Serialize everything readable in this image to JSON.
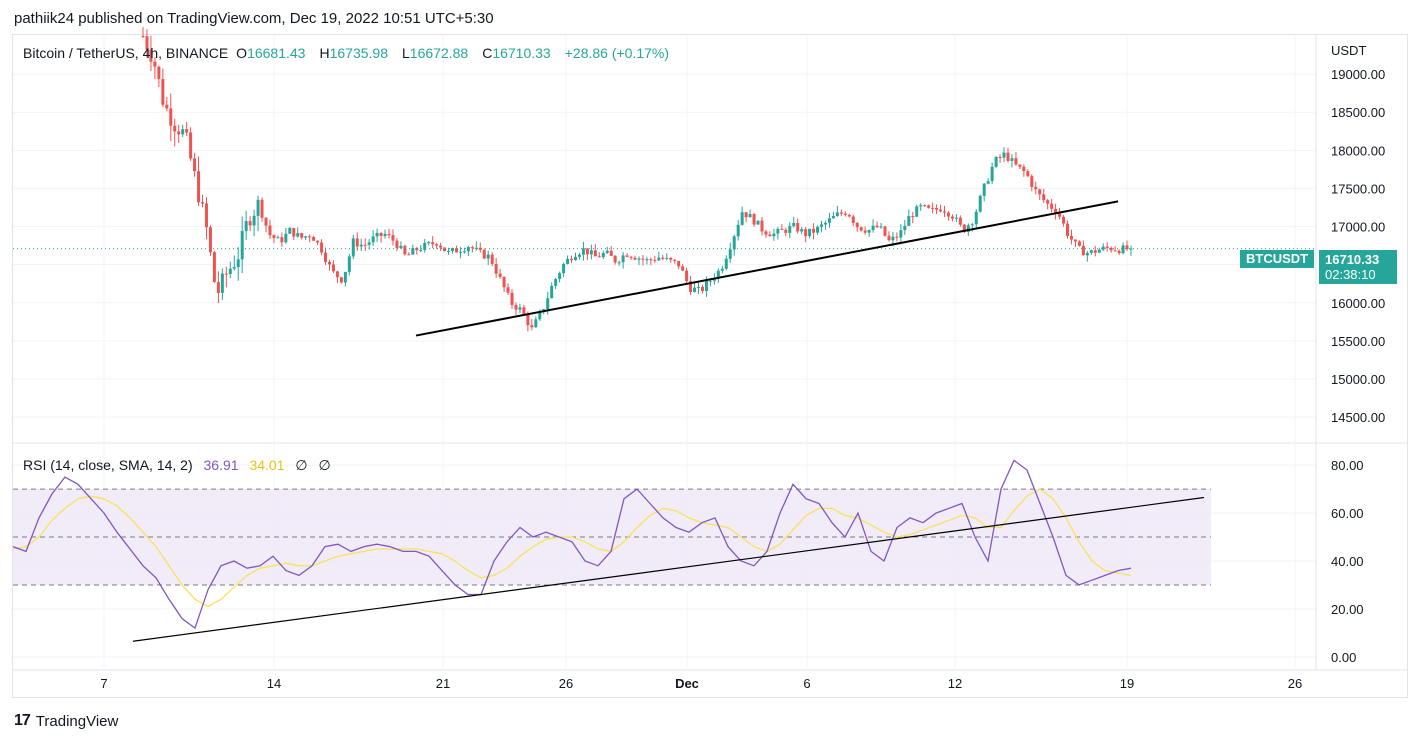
{
  "header": {
    "publish_text": "pathiik24 published on TradingView.com, Dec 19, 2022 10:51 UTC+5:30"
  },
  "legend": {
    "symbol": "Bitcoin / TetherUS, 4h, BINANCE",
    "o_label": "O",
    "o_value": "16681.43",
    "h_label": "H",
    "h_value": "16735.98",
    "l_label": "L",
    "l_value": "16672.88",
    "c_label": "C",
    "c_value": "16710.33",
    "change": "+28.86 (+0.17%)"
  },
  "rsi_legend": {
    "name": "RSI (14, close, SMA, 14, 2)",
    "rsi_value": "36.91",
    "sma_value": "34.01",
    "empty1": "∅",
    "empty2": "∅"
  },
  "price_tags": {
    "ticker": "BTCUSDT",
    "last_price": "16710.33",
    "countdown": "02:38:10"
  },
  "footer": {
    "brand": "TradingView",
    "logo": "17"
  },
  "colors": {
    "up": "#26a69a",
    "down": "#ef5350",
    "rsi": "#7e57c2",
    "sma": "#f7e25c",
    "band": "#ede7f6",
    "grid": "#f0f3fa",
    "trend": "#000000"
  },
  "chart_data": [
    {
      "type": "candlestick",
      "title": "Bitcoin / TetherUS, 4h, BINANCE",
      "currency": "USDT",
      "x_ticks": [
        "7",
        "14",
        "21",
        "26",
        "Dec",
        "6",
        "12",
        "19",
        "26"
      ],
      "y_ticks": [
        "19000.00",
        "18500.00",
        "18000.00",
        "17500.00",
        "17000.00",
        "16500.00",
        "16000.00",
        "15500.00",
        "15000.00",
        "14500.00"
      ],
      "ylim": [
        14200,
        19500
      ],
      "last_price": 16710.33,
      "trendline": {
        "from_price": 15570,
        "to_price": 17330
      },
      "close_path": [
        19500,
        19200,
        18600,
        18350,
        18200,
        17600,
        17000,
        16100,
        16400,
        16600,
        17100,
        17300,
        16900,
        16800,
        16950,
        16850,
        16900,
        16700,
        16400,
        16300,
        16800,
        16750,
        16850,
        16900,
        16800,
        16600,
        16700,
        16750,
        16800,
        16650,
        16700,
        16750,
        16650,
        16600,
        16300,
        16000,
        15900,
        15650,
        15900,
        16250,
        16500,
        16650,
        16700,
        16600,
        16650,
        16550,
        16650,
        16600,
        16550,
        16600,
        16550,
        16500,
        16200,
        16150,
        16300,
        16450,
        16800,
        17200,
        17100,
        16950,
        16900,
        16950,
        17000,
        16900,
        16950,
        17050,
        17150,
        17200,
        17000,
        16950,
        17000,
        16800,
        16900,
        17150,
        17250,
        17200,
        17250,
        17150,
        16950,
        17100,
        17500,
        17850,
        17950,
        17800,
        17700,
        17450,
        17300,
        17200,
        16900,
        16700,
        16650,
        16700,
        16720,
        16700,
        16710
      ]
    },
    {
      "type": "line",
      "title": "RSI (14, close, SMA, 14, 2)",
      "x_ticks": [
        "7",
        "14",
        "21",
        "26",
        "Dec",
        "6",
        "12",
        "19",
        "26"
      ],
      "y_ticks": [
        "80.00",
        "60.00",
        "40.00",
        "20.00",
        "0.00"
      ],
      "ylim": [
        -3,
        88
      ],
      "band": [
        30,
        70
      ],
      "midline": 50,
      "trendline": {
        "from_value": 6.5,
        "to_value": 66.5
      },
      "series": [
        {
          "name": "RSI",
          "values": [
            46,
            44,
            58,
            68,
            75,
            72,
            66,
            60,
            52,
            45,
            38,
            33,
            24,
            16,
            12,
            28,
            38,
            40,
            37,
            38,
            42,
            36,
            34,
            38,
            46,
            47,
            44,
            46,
            47,
            46,
            44,
            44,
            42,
            36,
            30,
            26,
            26,
            40,
            48,
            54,
            50,
            52,
            50,
            48,
            40,
            38,
            44,
            66,
            70,
            64,
            58,
            54,
            52,
            56,
            58,
            46,
            40,
            38,
            44,
            60,
            72,
            66,
            64,
            56,
            50,
            60,
            44,
            40,
            54,
            58,
            56,
            60,
            62,
            64,
            50,
            40,
            70,
            82,
            78,
            64,
            50,
            34,
            30,
            32,
            34,
            36,
            37
          ]
        },
        {
          "name": "RSI-based MA",
          "values": [
            45,
            46,
            50,
            57,
            62,
            66,
            67,
            66,
            63,
            58,
            52,
            46,
            38,
            30,
            24,
            21,
            24,
            29,
            34,
            37,
            38,
            39,
            38,
            38,
            40,
            42,
            43,
            44,
            45,
            45,
            45,
            45,
            44,
            43,
            40,
            36,
            33,
            34,
            37,
            42,
            46,
            49,
            50,
            50,
            48,
            45,
            44,
            48,
            54,
            59,
            62,
            61,
            58,
            56,
            55,
            54,
            50,
            46,
            44,
            47,
            53,
            59,
            62,
            62,
            59,
            58,
            55,
            52,
            50,
            51,
            53,
            55,
            57,
            59,
            58,
            54,
            54,
            61,
            67,
            70,
            66,
            58,
            48,
            40,
            36,
            35,
            34
          ]
        }
      ]
    }
  ]
}
